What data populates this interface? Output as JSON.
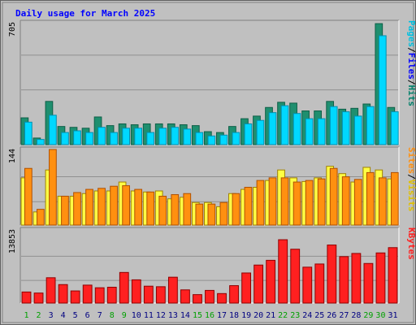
{
  "title": "Daily usage for March 2025",
  "colors": {
    "title": "#0000ff",
    "weekday": "#0000a0",
    "weekend": "#00a000",
    "hits": "#1f8f6f",
    "files": "#00d8ff",
    "pages": "#00c0e0",
    "visits": "#ffff44",
    "sites": "#ff9010",
    "kbytes": "#ff2020",
    "plot_bg": "#c0c0c0",
    "frame": "#808080"
  },
  "chart_data": [
    {
      "type": "bar",
      "title": "",
      "ymax_label": "705",
      "ymax": 705,
      "legend": [
        "Pages",
        "/",
        "Files",
        "/",
        "Hits"
      ],
      "legend_colors": [
        "#00c0e0",
        "#000000",
        "#0000ff",
        "#000000",
        "#00806a"
      ],
      "categories": [
        "1",
        "2",
        "3",
        "4",
        "5",
        "6",
        "7",
        "8",
        "9",
        "10",
        "11",
        "12",
        "13",
        "14",
        "15",
        "16",
        "17",
        "18",
        "19",
        "20",
        "21",
        "22",
        "23",
        "24",
        "25",
        "26",
        "27",
        "28",
        "29",
        "30",
        "31"
      ],
      "series": [
        {
          "name": "Hits",
          "values": [
            155,
            38,
            250,
            105,
            100,
            95,
            160,
            110,
            120,
            115,
            120,
            120,
            120,
            115,
            110,
            75,
            70,
            105,
            150,
            165,
            215,
            245,
            240,
            195,
            195,
            250,
            205,
            210,
            235,
            700,
            215
          ]
        },
        {
          "name": "Files",
          "values": [
            130,
            30,
            170,
            70,
            80,
            70,
            100,
            70,
            95,
            95,
            70,
            95,
            100,
            90,
            70,
            50,
            55,
            70,
            120,
            140,
            185,
            225,
            180,
            150,
            150,
            220,
            190,
            165,
            220,
            630,
            190
          ]
        }
      ]
    },
    {
      "type": "bar",
      "title": "",
      "ymax_label": "144",
      "ymax": 144,
      "legend": [
        "Sites",
        "/",
        "Visits"
      ],
      "legend_colors": [
        "#ff9010",
        "#000000",
        "#e0c000"
      ],
      "categories": [
        "1",
        "2",
        "3",
        "4",
        "5",
        "6",
        "7",
        "8",
        "9",
        "10",
        "11",
        "12",
        "13",
        "14",
        "15",
        "16",
        "17",
        "18",
        "19",
        "20",
        "21",
        "22",
        "23",
        "24",
        "25",
        "26",
        "27",
        "28",
        "29",
        "30",
        "31"
      ],
      "series": [
        {
          "name": "Visits",
          "values": [
            90,
            25,
            105,
            55,
            55,
            60,
            65,
            65,
            82,
            65,
            63,
            65,
            50,
            53,
            43,
            43,
            35,
            60,
            68,
            72,
            85,
            105,
            90,
            83,
            90,
            112,
            98,
            82,
            110,
            105,
            88
          ]
        },
        {
          "name": "Sites",
          "values": [
            108,
            30,
            144,
            55,
            62,
            68,
            70,
            74,
            75,
            68,
            63,
            55,
            58,
            60,
            40,
            40,
            43,
            60,
            72,
            85,
            90,
            90,
            82,
            85,
            88,
            108,
            92,
            87,
            100,
            90,
            100
          ]
        }
      ]
    },
    {
      "type": "bar",
      "title": "",
      "ymax_label": "13853",
      "ymax": 13853,
      "legend": [
        "KBytes"
      ],
      "legend_colors": [
        "#ff2020"
      ],
      "categories": [
        "1",
        "2",
        "3",
        "4",
        "5",
        "6",
        "7",
        "8",
        "9",
        "10",
        "11",
        "12",
        "13",
        "14",
        "15",
        "16",
        "17",
        "18",
        "19",
        "20",
        "21",
        "22",
        "23",
        "24",
        "25",
        "26",
        "27",
        "28",
        "29",
        "30",
        "31"
      ],
      "series": [
        {
          "name": "KBytes",
          "values": [
            2100,
            1900,
            4800,
            3500,
            2300,
            3400,
            2900,
            3000,
            5800,
            4400,
            3200,
            3100,
            4900,
            2500,
            1600,
            2400,
            1800,
            3300,
            5700,
            7200,
            8100,
            12000,
            10200,
            6800,
            7400,
            11000,
            8800,
            9400,
            7500,
            9500,
            10500
          ]
        }
      ]
    }
  ],
  "day_labels": [
    "1",
    "2",
    "3",
    "4",
    "5",
    "6",
    "7",
    "8",
    "9",
    "10",
    "11",
    "12",
    "13",
    "14",
    "15",
    "16",
    "17",
    "18",
    "19",
    "20",
    "21",
    "22",
    "23",
    "24",
    "25",
    "26",
    "27",
    "28",
    "29",
    "30",
    "31"
  ],
  "weekend_days": [
    "1",
    "2",
    "8",
    "9",
    "15",
    "16",
    "22",
    "23",
    "29",
    "30"
  ]
}
